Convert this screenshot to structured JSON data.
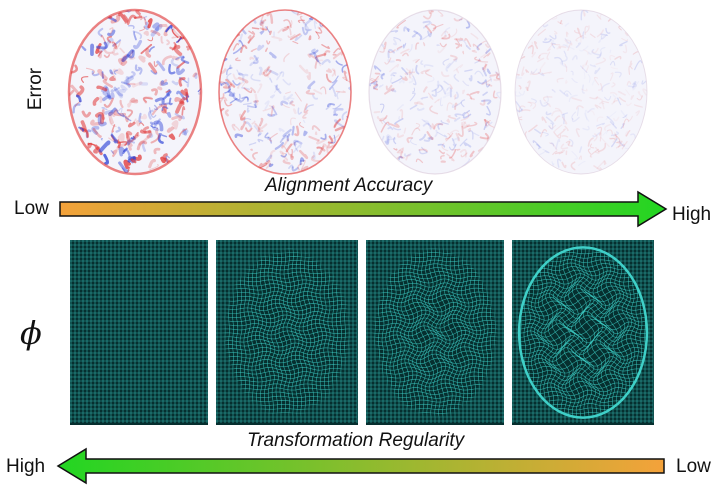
{
  "rows": {
    "error_label": "Error",
    "phi_label": "ϕ"
  },
  "top_axis": {
    "low_label": "Low",
    "high_label": "High",
    "title": "Alignment Accuracy",
    "gradient_start": "#f4a23a",
    "gradient_end": "#22d622"
  },
  "bottom_axis": {
    "low_label": "Low",
    "high_label": "High",
    "title": "Transformation Regularity",
    "gradient_start": "#f4a23a",
    "gradient_end": "#22d622"
  },
  "error_maps": [
    {
      "name": "error-map-1",
      "intensity": 1.0
    },
    {
      "name": "error-map-2",
      "intensity": 0.55
    },
    {
      "name": "error-map-3",
      "intensity": 0.35
    },
    {
      "name": "error-map-4",
      "intensity": 0.2
    }
  ],
  "deformation_grids": [
    {
      "name": "grid-1",
      "distortion": 0.0
    },
    {
      "name": "grid-2",
      "distortion": 0.35
    },
    {
      "name": "grid-3",
      "distortion": 0.55
    },
    {
      "name": "grid-4",
      "distortion": 1.0
    }
  ],
  "colors": {
    "error_positive": "#e03030",
    "error_negative": "#2a3fd6",
    "grid_background": "#062f2f",
    "grid_lines": "#3fd0c8"
  }
}
